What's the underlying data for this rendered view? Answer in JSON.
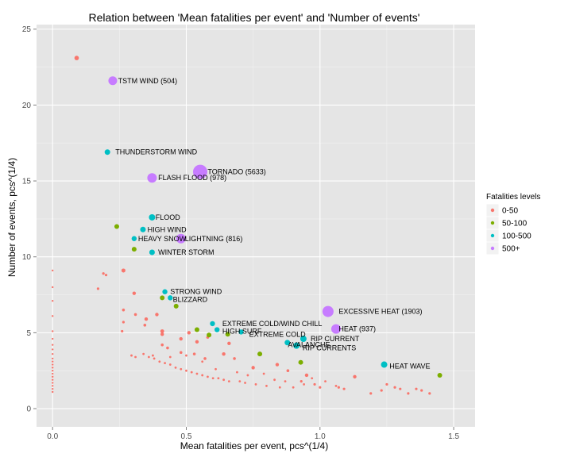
{
  "chart_data": {
    "type": "scatter",
    "title": "Relation between 'Mean fatalities per event' and 'Number of events'",
    "xlabel": "Mean fatalities per event, pcs^(1/4)",
    "ylabel": "Number of events, pcs^(1/4)",
    "xlim": [
      -0.06,
      1.58
    ],
    "ylim": [
      -1.2,
      25.3
    ],
    "x_ticks": [
      0.0,
      0.5,
      1.0,
      1.5
    ],
    "x_tick_labels": [
      "0.0",
      "0.5",
      "1.0",
      "1.5"
    ],
    "y_ticks": [
      0,
      5,
      10,
      15,
      20,
      25
    ],
    "y_tick_labels": [
      "0",
      "5",
      "10",
      "15",
      "20",
      "25"
    ],
    "grid": true,
    "legend": {
      "title": "Fatalities levels",
      "position": "right",
      "entries": [
        {
          "label": "0-50",
          "color": "#F8766D"
        },
        {
          "label": "50-100",
          "color": "#7CAE00"
        },
        {
          "label": "100-500",
          "color": "#00BFC4"
        },
        {
          "label": "500+",
          "color": "#C77CFF"
        }
      ]
    },
    "annotations": [
      {
        "text": "TSTM WIND (504)",
        "x": 0.245,
        "y": 21.6
      },
      {
        "text": "THUNDERSTORM WIND",
        "x": 0.235,
        "y": 16.9
      },
      {
        "text": "TORNADO (5633)",
        "x": 0.58,
        "y": 15.6
      },
      {
        "text": "FLASH FLOOD (978)",
        "x": 0.395,
        "y": 15.2
      },
      {
        "text": "FLOOD",
        "x": 0.385,
        "y": 12.6
      },
      {
        "text": "HIGH WIND",
        "x": 0.355,
        "y": 11.8
      },
      {
        "text": "HEAVY SNOW",
        "x": 0.32,
        "y": 11.2
      },
      {
        "text": "LIGHTNING (816)",
        "x": 0.495,
        "y": 11.2
      },
      {
        "text": "WINTER STORM",
        "x": 0.395,
        "y": 10.3
      },
      {
        "text": "STRONG WIND",
        "x": 0.44,
        "y": 7.7
      },
      {
        "text": "BLIZZARD",
        "x": 0.45,
        "y": 7.2
      },
      {
        "text": "EXCESSIVE HEAT (1903)",
        "x": 1.07,
        "y": 6.4
      },
      {
        "text": "EXTREME COLD/WIND CHILL",
        "x": 0.635,
        "y": 5.6
      },
      {
        "text": "HEAT (937)",
        "x": 1.07,
        "y": 5.25
      },
      {
        "text": "HIGH SURF",
        "x": 0.635,
        "y": 5.1
      },
      {
        "text": "EXTREME COLD",
        "x": 0.735,
        "y": 4.9
      },
      {
        "text": "RIP CURRENT",
        "x": 0.965,
        "y": 4.6
      },
      {
        "text": "AVALANCHE",
        "x": 0.88,
        "y": 4.2
      },
      {
        "text": "RIP CURRENTS",
        "x": 0.935,
        "y": 4.0
      },
      {
        "text": "HEAT WAVE",
        "x": 1.26,
        "y": 2.8
      }
    ],
    "series": [
      {
        "name": "500+",
        "color": "#C77CFF",
        "points": [
          [
            0.225,
            21.6,
            5.5
          ],
          [
            0.552,
            15.6,
            9
          ],
          [
            0.372,
            15.2,
            6
          ],
          [
            0.48,
            11.2,
            6
          ],
          [
            1.03,
            6.4,
            7
          ],
          [
            1.06,
            5.25,
            6
          ]
        ]
      },
      {
        "name": "100-500",
        "color": "#00BFC4",
        "points": [
          [
            0.205,
            16.9,
            3.5
          ],
          [
            0.372,
            12.6,
            4
          ],
          [
            0.338,
            11.8,
            3.5
          ],
          [
            0.305,
            11.2,
            3.2
          ],
          [
            0.372,
            10.3,
            3.5
          ],
          [
            0.42,
            7.7,
            3.2
          ],
          [
            0.44,
            7.3,
            3.2
          ],
          [
            0.598,
            5.6,
            3.2
          ],
          [
            0.615,
            5.2,
            3.2
          ],
          [
            0.705,
            5.05,
            3.2
          ],
          [
            0.938,
            4.6,
            4
          ],
          [
            0.878,
            4.35,
            3.5
          ],
          [
            0.912,
            4.15,
            4
          ],
          [
            1.24,
            2.9,
            4
          ]
        ]
      },
      {
        "name": "50-100",
        "color": "#7CAE00",
        "points": [
          [
            0.24,
            12.0,
            3
          ],
          [
            0.305,
            10.5,
            3
          ],
          [
            0.41,
            7.3,
            3
          ],
          [
            0.462,
            6.75,
            3
          ],
          [
            0.54,
            5.2,
            3
          ],
          [
            0.585,
            4.85,
            3
          ],
          [
            0.655,
            4.9,
            3
          ],
          [
            0.775,
            3.6,
            3
          ],
          [
            0.928,
            3.05,
            3
          ],
          [
            1.448,
            2.2,
            3
          ]
        ]
      },
      {
        "name": "0-50",
        "color": "#F8766D",
        "points": [
          [
            0.09,
            23.1,
            2.8
          ],
          [
            0.265,
            9.1,
            2.5
          ],
          [
            0.2,
            8.8,
            1.6
          ],
          [
            0.19,
            8.9,
            1.6
          ],
          [
            0.17,
            7.9,
            1.6
          ],
          [
            0.305,
            7.6,
            2.2
          ],
          [
            0.265,
            6.5,
            1.8
          ],
          [
            0.31,
            6.2,
            1.8
          ],
          [
            0.265,
            5.7,
            1.6
          ],
          [
            0.35,
            5.9,
            2.2
          ],
          [
            0.39,
            6.2,
            2.2
          ],
          [
            0.26,
            5.1,
            1.6
          ],
          [
            0.345,
            5.5,
            1.8
          ],
          [
            0.41,
            5.1,
            2.4
          ],
          [
            0.41,
            4.9,
            2.2
          ],
          [
            0.51,
            5.0,
            2.2
          ],
          [
            0.48,
            4.6,
            2.2
          ],
          [
            0.54,
            4.4,
            2.2
          ],
          [
            0.58,
            4.7,
            1.8
          ],
          [
            0.41,
            4.2,
            1.8
          ],
          [
            0.43,
            4.0,
            1.8
          ],
          [
            0.48,
            3.7,
            1.8
          ],
          [
            0.53,
            3.6,
            1.8
          ],
          [
            0.57,
            3.3,
            1.8
          ],
          [
            0.64,
            3.6,
            2.2
          ],
          [
            0.66,
            4.3,
            2.2
          ],
          [
            0.68,
            3.3,
            1.8
          ],
          [
            0.75,
            2.7,
            2.2
          ],
          [
            0.84,
            2.9,
            2.2
          ],
          [
            0.88,
            2.5,
            1.8
          ],
          [
            0.95,
            2.2,
            2.2
          ],
          [
            0.93,
            1.8,
            1.6
          ],
          [
            0.98,
            1.6,
            1.6
          ],
          [
            1.0,
            1.4,
            1.6
          ],
          [
            1.07,
            1.4,
            1.6
          ],
          [
            1.09,
            1.3,
            1.6
          ],
          [
            1.13,
            2.1,
            2.2
          ],
          [
            1.19,
            1.0,
            1.6
          ],
          [
            1.23,
            1.2,
            1.6
          ],
          [
            1.25,
            1.6,
            1.6
          ],
          [
            1.28,
            1.4,
            1.6
          ],
          [
            1.3,
            1.3,
            1.6
          ],
          [
            1.33,
            1.0,
            1.6
          ],
          [
            1.36,
            1.3,
            1.6
          ],
          [
            1.38,
            1.2,
            1.6
          ],
          [
            1.41,
            1.0,
            1.6
          ],
          [
            0.34,
            3.6,
            1.4
          ],
          [
            0.36,
            3.4,
            1.4
          ],
          [
            0.38,
            3.3,
            1.4
          ],
          [
            0.4,
            3.1,
            1.4
          ],
          [
            0.42,
            3.0,
            1.4
          ],
          [
            0.44,
            2.9,
            1.4
          ],
          [
            0.46,
            2.7,
            1.4
          ],
          [
            0.48,
            2.6,
            1.4
          ],
          [
            0.5,
            2.5,
            1.4
          ],
          [
            0.52,
            2.4,
            1.4
          ],
          [
            0.54,
            2.3,
            1.4
          ],
          [
            0.56,
            2.2,
            1.4
          ],
          [
            0.58,
            2.1,
            1.4
          ],
          [
            0.6,
            2.0,
            1.4
          ],
          [
            0.62,
            2.0,
            1.4
          ],
          [
            0.64,
            1.9,
            1.4
          ],
          [
            0.66,
            1.8,
            1.4
          ],
          [
            0.7,
            1.8,
            1.4
          ],
          [
            0.72,
            1.7,
            1.4
          ],
          [
            0.76,
            1.6,
            1.4
          ],
          [
            0.8,
            1.5,
            1.4
          ],
          [
            0.85,
            1.4,
            1.4
          ],
          [
            0.9,
            1.4,
            1.4
          ],
          [
            0.295,
            3.5,
            1.4
          ],
          [
            0.31,
            3.4,
            1.4
          ],
          [
            0.375,
            3.5,
            1.4
          ],
          [
            0.44,
            3.4,
            1.4
          ],
          [
            0.5,
            3.5,
            1.4
          ],
          [
            0.56,
            3.1,
            1.4
          ],
          [
            0.61,
            2.6,
            1.4
          ],
          [
            0.69,
            2.4,
            1.4
          ],
          [
            0.73,
            2.2,
            1.4
          ],
          [
            0.79,
            2.3,
            1.4
          ],
          [
            0.83,
            1.9,
            1.4
          ],
          [
            0.87,
            1.8,
            1.4
          ],
          [
            0.94,
            1.6,
            1.4
          ],
          [
            0.97,
            2.0,
            1.4
          ],
          [
            1.02,
            1.8,
            1.4
          ],
          [
            1.06,
            1.5,
            1.4
          ],
          [
            0.0,
            9.1,
            1.2
          ],
          [
            0.0,
            8.0,
            1.2
          ],
          [
            0.0,
            7.1,
            1.2
          ],
          [
            0.0,
            6.1,
            1.2
          ],
          [
            0.0,
            5.1,
            1.2
          ],
          [
            0.0,
            4.6,
            1.2
          ],
          [
            0.0,
            4.2,
            1.2
          ],
          [
            0.0,
            3.9,
            1.2
          ],
          [
            0.0,
            3.6,
            1.2
          ],
          [
            0.0,
            3.3,
            1.2
          ],
          [
            0.0,
            3.1,
            1.2
          ],
          [
            0.0,
            2.9,
            1.2
          ],
          [
            0.0,
            2.7,
            1.2
          ],
          [
            0.0,
            2.5,
            1.2
          ],
          [
            0.0,
            2.3,
            1.2
          ],
          [
            0.0,
            2.1,
            1.2
          ],
          [
            0.0,
            1.9,
            1.2
          ],
          [
            0.0,
            1.7,
            1.2
          ],
          [
            0.0,
            1.5,
            1.2
          ],
          [
            0.0,
            1.3,
            1.2
          ],
          [
            0.0,
            1.1,
            1.2
          ]
        ]
      }
    ]
  }
}
